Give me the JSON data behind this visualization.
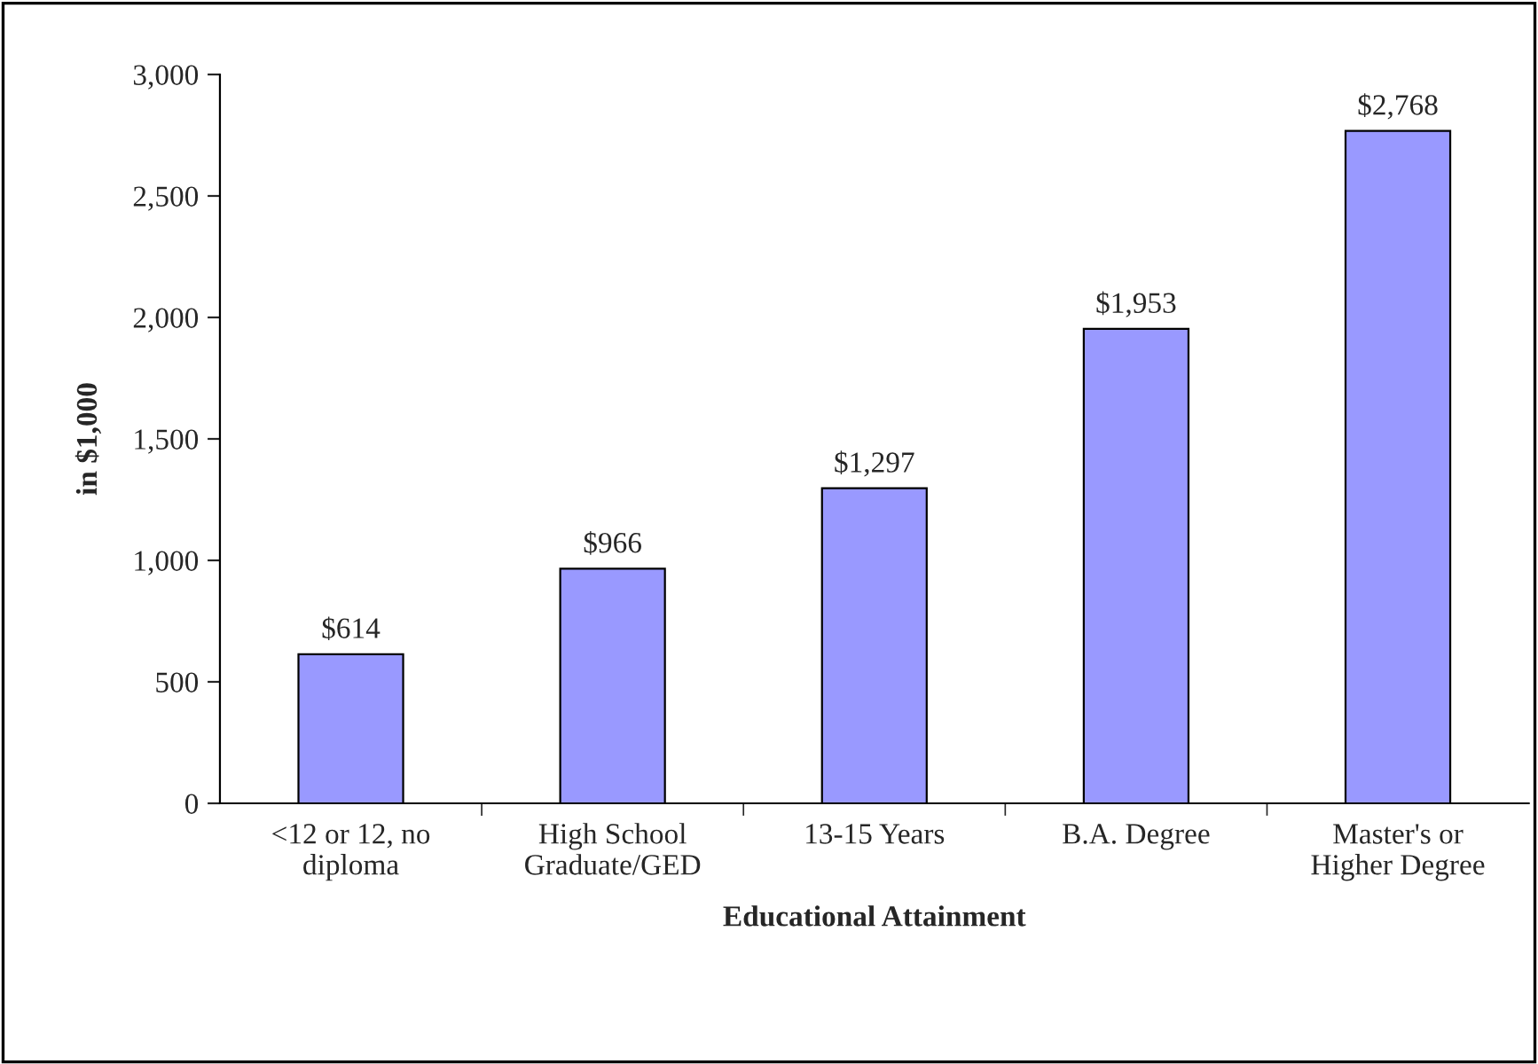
{
  "chart_data": {
    "type": "bar",
    "xlabel": "Educational Attainment",
    "ylabel": "in $1,000",
    "categories": [
      "<12 or 12, no\ndiploma",
      "High School\nGraduate/GED",
      "13-15 Years",
      "B.A. Degree",
      "Master's or\nHigher Degree"
    ],
    "values": [
      614,
      966,
      1297,
      1953,
      2768
    ],
    "value_labels": [
      "$614",
      "$966",
      "$1,297",
      "$1,953",
      "$2,768"
    ],
    "color": "#9999ff",
    "ylim": [
      0,
      3000
    ],
    "yticks": [
      0,
      500,
      {
        "value": 1000,
        "label": "1,000"
      },
      {
        "value": 1500,
        "label": "1,500"
      },
      {
        "value": 2000,
        "label": "2,000"
      },
      {
        "value": 2500,
        "label": "2,500"
      },
      {
        "value": 3000,
        "label": "3,000"
      }
    ],
    "grid": false,
    "legend": false
  }
}
